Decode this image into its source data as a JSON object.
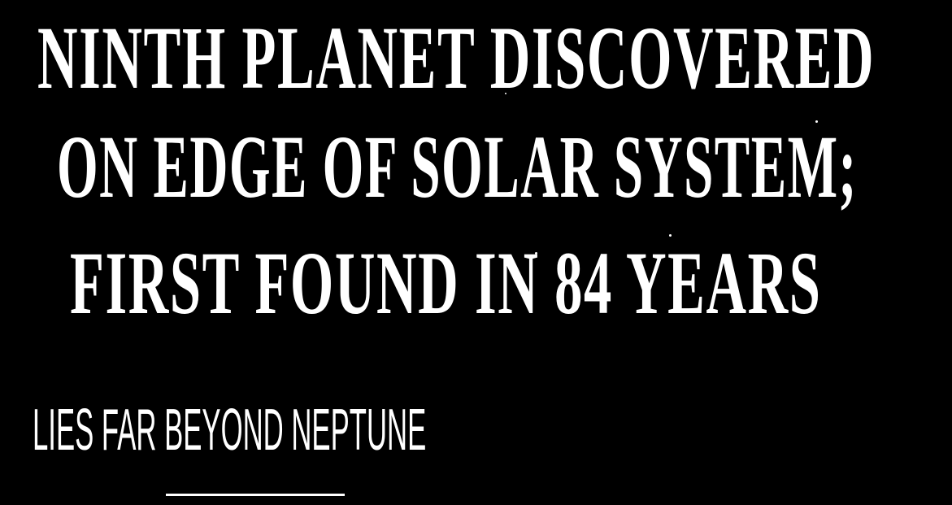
{
  "headline": {
    "lines": [
      "NINTH PLANET DISCOVERED",
      "ON EDGE OF SOLAR SYSTEM;",
      "FIRST FOUND IN 84 YEARS"
    ]
  },
  "subheadline": "LIES FAR BEYOND NEPTUNE"
}
